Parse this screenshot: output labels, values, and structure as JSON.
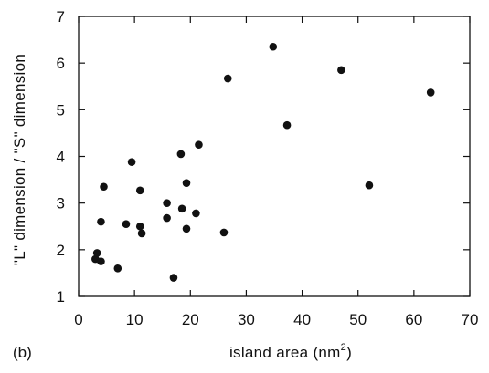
{
  "panel_label": "(b)",
  "chart_data": {
    "type": "scatter",
    "title": "",
    "xlabel": "island area (nm",
    "xlabel_superscript": "2",
    "xlabel_suffix": ")",
    "ylabel": "\"L\" dimension / \"S\" dimension",
    "xlim": [
      0,
      70
    ],
    "ylim": [
      1,
      7
    ],
    "x_ticks": [
      0,
      10,
      20,
      30,
      40,
      50,
      60,
      70
    ],
    "y_ticks": [
      1,
      2,
      3,
      4,
      5,
      6,
      7
    ],
    "grid": false,
    "series": [
      {
        "points": [
          {
            "x": 3.0,
            "y": 1.8
          },
          {
            "x": 3.3,
            "y": 1.93
          },
          {
            "x": 4.0,
            "y": 1.75
          },
          {
            "x": 4.0,
            "y": 2.6
          },
          {
            "x": 4.5,
            "y": 3.35
          },
          {
            "x": 7.0,
            "y": 1.6
          },
          {
            "x": 8.5,
            "y": 2.55
          },
          {
            "x": 9.5,
            "y": 3.88
          },
          {
            "x": 11.0,
            "y": 3.27
          },
          {
            "x": 11.0,
            "y": 2.5
          },
          {
            "x": 11.3,
            "y": 2.35
          },
          {
            "x": 15.8,
            "y": 3.0
          },
          {
            "x": 15.8,
            "y": 2.68
          },
          {
            "x": 17.0,
            "y": 1.4
          },
          {
            "x": 18.3,
            "y": 4.05
          },
          {
            "x": 18.5,
            "y": 2.88
          },
          {
            "x": 19.3,
            "y": 3.43
          },
          {
            "x": 19.3,
            "y": 2.45
          },
          {
            "x": 21.0,
            "y": 2.78
          },
          {
            "x": 21.5,
            "y": 4.25
          },
          {
            "x": 26.0,
            "y": 2.37
          },
          {
            "x": 26.7,
            "y": 5.67
          },
          {
            "x": 34.8,
            "y": 6.35
          },
          {
            "x": 37.3,
            "y": 4.67
          },
          {
            "x": 47.0,
            "y": 5.85
          },
          {
            "x": 52.0,
            "y": 3.38
          },
          {
            "x": 63.0,
            "y": 5.37
          }
        ]
      }
    ]
  }
}
